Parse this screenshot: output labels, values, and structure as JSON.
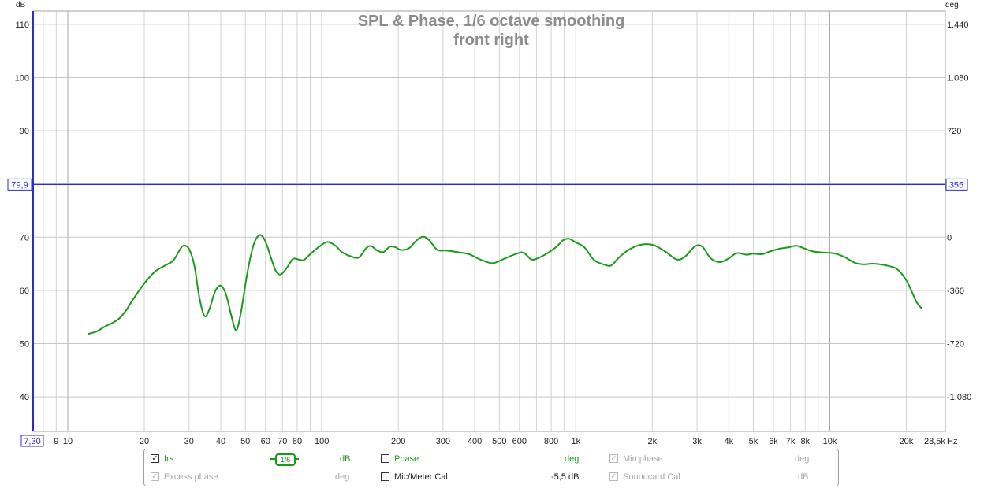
{
  "chart_data": {
    "type": "line",
    "title": "SPL & Phase, 1/6 octave smoothing",
    "subtitle": "front right",
    "y_left_unit": "dB",
    "y_right_unit": "deg",
    "x_unit": "Hz",
    "x_scale": "log",
    "xlim": [
      7.3,
      28500
    ],
    "ylim": [
      33.5,
      112.5
    ],
    "y_right_range": [
      -1400,
      1440
    ],
    "grid": true,
    "x_tick_labels": [
      {
        "v": 9,
        "t": "9"
      },
      {
        "v": 10,
        "t": "10"
      },
      {
        "v": 20,
        "t": "20"
      },
      {
        "v": 30,
        "t": "30"
      },
      {
        "v": 40,
        "t": "40"
      },
      {
        "v": 50,
        "t": "50"
      },
      {
        "v": 60,
        "t": "60"
      },
      {
        "v": 70,
        "t": "70"
      },
      {
        "v": 80,
        "t": "80"
      },
      {
        "v": 100,
        "t": "100"
      },
      {
        "v": 200,
        "t": "200"
      },
      {
        "v": 300,
        "t": "300"
      },
      {
        "v": 400,
        "t": "400"
      },
      {
        "v": 500,
        "t": "500"
      },
      {
        "v": 600,
        "t": "600"
      },
      {
        "v": 800,
        "t": "800"
      },
      {
        "v": 1000,
        "t": "1k"
      },
      {
        "v": 2000,
        "t": "2k"
      },
      {
        "v": 3000,
        "t": "3k"
      },
      {
        "v": 4000,
        "t": "4k"
      },
      {
        "v": 5000,
        "t": "5k"
      },
      {
        "v": 6000,
        "t": "6k"
      },
      {
        "v": 7000,
        "t": "7k"
      },
      {
        "v": 8000,
        "t": "8k"
      },
      {
        "v": 10000,
        "t": "10k"
      },
      {
        "v": 20000,
        "t": "20k"
      }
    ],
    "x_start_label": "7,30",
    "x_end_label": "28,5k",
    "y_left_ticks": [
      40,
      50,
      60,
      70,
      80,
      90,
      100,
      110
    ],
    "y_right_ticks": [
      {
        "v": 40,
        "t": "-1.080"
      },
      {
        "v": 50,
        "t": "-720"
      },
      {
        "v": 60,
        "t": "-360"
      },
      {
        "v": 70,
        "t": "0"
      },
      {
        "v": 90,
        "t": "720"
      },
      {
        "v": 100,
        "t": "1.080"
      },
      {
        "v": 110,
        "t": "1.440"
      }
    ],
    "cursor": {
      "y": 79.9,
      "left_label": "79,9",
      "right_label": "355"
    },
    "series": [
      {
        "name": "frs",
        "color": "#1a9a1a",
        "points": [
          [
            12,
            51.8
          ],
          [
            13,
            52.3
          ],
          [
            14,
            53.2
          ],
          [
            15,
            53.9
          ],
          [
            16,
            54.8
          ],
          [
            17,
            56.3
          ],
          [
            18,
            58.2
          ],
          [
            20,
            61.3
          ],
          [
            22,
            63.5
          ],
          [
            24,
            64.6
          ],
          [
            26,
            65.6
          ],
          [
            27.5,
            67.5
          ],
          [
            28.5,
            68.4
          ],
          [
            30,
            67.8
          ],
          [
            31.5,
            64.6
          ],
          [
            33,
            58.5
          ],
          [
            34.5,
            55.2
          ],
          [
            36,
            56.3
          ],
          [
            38,
            59.8
          ],
          [
            40,
            60.9
          ],
          [
            42,
            59.2
          ],
          [
            44,
            55.3
          ],
          [
            46,
            52.5
          ],
          [
            48,
            55.8
          ],
          [
            51,
            63.5
          ],
          [
            54,
            68.7
          ],
          [
            57,
            70.4
          ],
          [
            60,
            69.2
          ],
          [
            63,
            66.2
          ],
          [
            66,
            63.6
          ],
          [
            69,
            63.0
          ],
          [
            73,
            64.3
          ],
          [
            77,
            65.9
          ],
          [
            81,
            65.8
          ],
          [
            85,
            65.7
          ],
          [
            90,
            66.8
          ],
          [
            97,
            68.1
          ],
          [
            105,
            69.1
          ],
          [
            113,
            68.4
          ],
          [
            120,
            67.2
          ],
          [
            130,
            66.4
          ],
          [
            140,
            66.2
          ],
          [
            150,
            68.0
          ],
          [
            157,
            68.3
          ],
          [
            165,
            67.5
          ],
          [
            175,
            67.2
          ],
          [
            185,
            68.2
          ],
          [
            195,
            68.1
          ],
          [
            205,
            67.6
          ],
          [
            220,
            67.9
          ],
          [
            235,
            69.3
          ],
          [
            250,
            70.1
          ],
          [
            265,
            69.4
          ],
          [
            285,
            67.6
          ],
          [
            310,
            67.5
          ],
          [
            340,
            67.2
          ],
          [
            380,
            66.8
          ],
          [
            420,
            65.8
          ],
          [
            470,
            65.1
          ],
          [
            520,
            65.9
          ],
          [
            570,
            66.7
          ],
          [
            620,
            67.1
          ],
          [
            670,
            65.8
          ],
          [
            720,
            66.2
          ],
          [
            780,
            67.1
          ],
          [
            840,
            68.2
          ],
          [
            890,
            69.4
          ],
          [
            940,
            69.7
          ],
          [
            1000,
            69.0
          ],
          [
            1080,
            68.1
          ],
          [
            1180,
            65.7
          ],
          [
            1300,
            64.8
          ],
          [
            1380,
            64.7
          ],
          [
            1480,
            66.2
          ],
          [
            1600,
            67.5
          ],
          [
            1750,
            68.4
          ],
          [
            1900,
            68.7
          ],
          [
            2050,
            68.4
          ],
          [
            2250,
            67.3
          ],
          [
            2500,
            65.8
          ],
          [
            2700,
            66.4
          ],
          [
            2950,
            68.3
          ],
          [
            3150,
            68.2
          ],
          [
            3400,
            66.0
          ],
          [
            3700,
            65.3
          ],
          [
            4000,
            66.0
          ],
          [
            4300,
            67.0
          ],
          [
            4700,
            66.7
          ],
          [
            5000,
            66.9
          ],
          [
            5400,
            66.8
          ],
          [
            5800,
            67.3
          ],
          [
            6300,
            67.8
          ],
          [
            6900,
            68.1
          ],
          [
            7400,
            68.4
          ],
          [
            8000,
            67.8
          ],
          [
            8600,
            67.3
          ],
          [
            9500,
            67.1
          ],
          [
            10500,
            66.9
          ],
          [
            11500,
            66.2
          ],
          [
            12500,
            65.2
          ],
          [
            13500,
            64.9
          ],
          [
            15000,
            65.0
          ],
          [
            17000,
            64.6
          ],
          [
            18500,
            63.9
          ],
          [
            20000,
            61.9
          ],
          [
            21000,
            59.8
          ],
          [
            22000,
            57.7
          ],
          [
            23000,
            56.6
          ]
        ]
      }
    ]
  },
  "legend": {
    "row1": [
      {
        "checked": true,
        "enabled": true,
        "name": "frs",
        "unit": "dB",
        "smoothing": "1/6"
      },
      {
        "checked": false,
        "enabled": true,
        "name": "Phase",
        "unit": "deg"
      },
      {
        "checked": true,
        "enabled": false,
        "name": "Min phase",
        "unit": "deg"
      }
    ],
    "row2": [
      {
        "checked": true,
        "enabled": false,
        "name": "Excess phase",
        "unit": "deg"
      },
      {
        "checked": false,
        "enabled": true,
        "name": "Mic/Meter Cal",
        "unit": "-5,5 dB"
      },
      {
        "checked": true,
        "enabled": false,
        "name": "Soundcard Cal",
        "unit": "dB"
      }
    ]
  }
}
